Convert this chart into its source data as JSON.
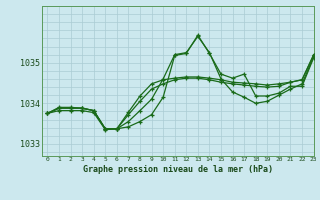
{
  "bg_color": "#cce8ee",
  "grid_color": "#aaccd4",
  "line_color": "#1a6b1a",
  "title": "Graphe pression niveau de la mer (hPa)",
  "xlim": [
    -0.5,
    23
  ],
  "ylim": [
    1032.7,
    1036.4
  ],
  "yticks": [
    1033,
    1034,
    1035
  ],
  "xticks": [
    0,
    1,
    2,
    3,
    4,
    5,
    6,
    7,
    8,
    9,
    10,
    11,
    12,
    13,
    14,
    15,
    16,
    17,
    18,
    19,
    20,
    21,
    22,
    23
  ],
  "series": [
    [
      1033.75,
      1033.9,
      1033.9,
      1033.88,
      1033.82,
      1033.37,
      1033.37,
      1033.55,
      1033.82,
      1034.1,
      1034.6,
      1035.2,
      1035.25,
      1035.65,
      1035.25,
      1034.6,
      1034.28,
      1034.15,
      1034.0,
      1034.05,
      1034.2,
      1034.35,
      1034.48,
      1035.15
    ],
    [
      1033.75,
      1033.82,
      1033.82,
      1033.82,
      1033.77,
      1033.35,
      1033.37,
      1033.42,
      1033.55,
      1033.72,
      1034.15,
      1035.18,
      1035.23,
      1035.68,
      1035.23,
      1034.72,
      1034.62,
      1034.72,
      1034.18,
      1034.18,
      1034.25,
      1034.42,
      1034.42,
      1035.12
    ],
    [
      1033.75,
      1033.88,
      1033.88,
      1033.88,
      1033.82,
      1033.37,
      1033.37,
      1033.72,
      1034.05,
      1034.35,
      1034.48,
      1034.58,
      1034.62,
      1034.62,
      1034.58,
      1034.52,
      1034.48,
      1034.45,
      1034.42,
      1034.4,
      1034.42,
      1034.52,
      1034.58,
      1035.18
    ],
    [
      1033.75,
      1033.88,
      1033.88,
      1033.88,
      1033.82,
      1033.37,
      1033.37,
      1033.78,
      1034.18,
      1034.48,
      1034.58,
      1034.62,
      1034.65,
      1034.65,
      1034.62,
      1034.58,
      1034.52,
      1034.5,
      1034.48,
      1034.45,
      1034.48,
      1034.52,
      1034.58,
      1035.2
    ]
  ]
}
